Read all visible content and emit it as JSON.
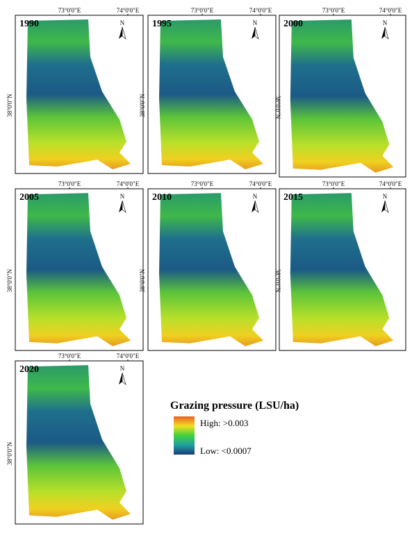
{
  "panels": [
    {
      "year": "1990",
      "x_labels": [
        "73°0'0\"E",
        "74°0'0\"E"
      ],
      "y_label": "38°0'0\"N",
      "north": "N"
    },
    {
      "year": "1995",
      "x_labels": [
        "73°0'0\"E",
        "74°0'0\"E"
      ],
      "y_label": "38°0'0\"N",
      "north": "N"
    },
    {
      "year": "2000",
      "x_labels": [
        "73°0'0\"E",
        "74°0'0\"E"
      ],
      "y_label": "38°0'0\"N",
      "north": "N"
    },
    {
      "year": "2005",
      "x_labels": [
        "73°0'0\"E",
        "74°0'0\"E"
      ],
      "y_label": "38°0'0\"N",
      "north": "N"
    },
    {
      "year": "2010",
      "x_labels": [
        "73°0'0\"E",
        "74°0'0\"E"
      ],
      "y_label": "38°0'0\"N",
      "north": "N"
    },
    {
      "year": "2015",
      "x_labels": [
        "73°0'0\"E",
        "74°0'0\"E"
      ],
      "y_label": "38°0'0\"N",
      "north": "N"
    },
    {
      "year": "2020",
      "x_labels": [
        "73°0'0\"E",
        "74°0'0\"E"
      ],
      "y_label": "38°0'0\"N",
      "north": "N"
    }
  ],
  "legend": {
    "title": "Grazing pressure (LSU/ha)",
    "high": "High: >0.003",
    "low": "Low: <0.0007"
  }
}
